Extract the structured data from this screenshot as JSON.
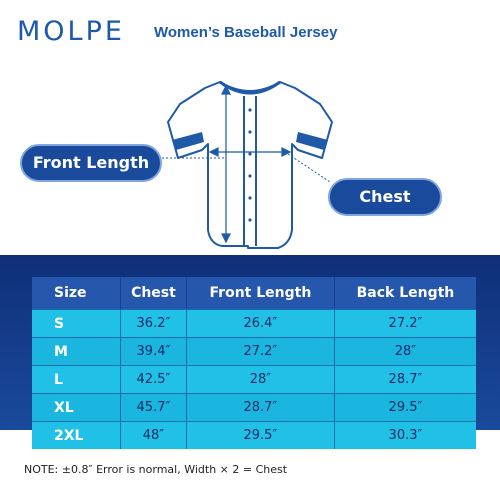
{
  "header": {
    "brand": "MOLPE",
    "title": "Women’s Baseball Jersey"
  },
  "diagram": {
    "front_length_label": "Front Length",
    "chest_label": "Chest"
  },
  "size_table": {
    "columns": [
      "Size",
      "Chest",
      "Front Length",
      "Back Length"
    ],
    "rows": [
      [
        "S",
        "36.2″",
        "26.4″",
        "27.2″"
      ],
      [
        "M",
        "39.4″",
        "27.2″",
        "28″"
      ],
      [
        "L",
        "42.5″",
        "28″",
        "28.7″"
      ],
      [
        "XL",
        "45.7″",
        "28.7″",
        "29.5″"
      ],
      [
        "2XL",
        "48″",
        "29.5″",
        "30.3″"
      ]
    ]
  },
  "footer": {
    "note": "NOTE: ±0.8″ Error is normal, Width × 2 = Chest"
  },
  "colors": {
    "brand_blue": "#1e5aa8",
    "panel_navy": "#0f2f78",
    "header_row": "#2557ad",
    "row_cyan": "#21c1e7"
  }
}
